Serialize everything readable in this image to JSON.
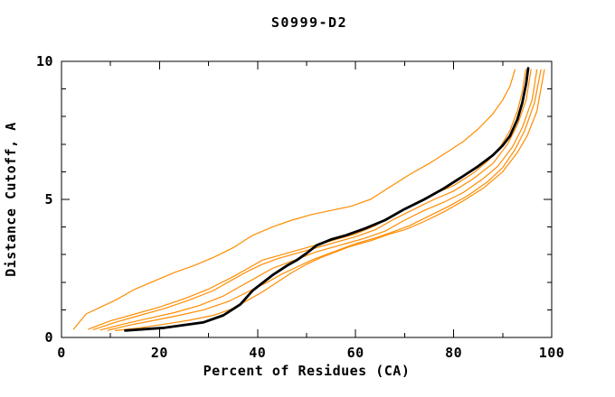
{
  "page": {
    "background": "#ffffff"
  },
  "chart_data": {
    "type": "line",
    "title": "S0999-D2",
    "xlabel": "Percent of Residues (CA)",
    "ylabel": "Distance Cutoff, A",
    "xlim": [
      0,
      100
    ],
    "ylim": [
      0,
      10
    ],
    "x_major_ticks": [
      0,
      20,
      40,
      60,
      80,
      100
    ],
    "x_minor_ticks": [
      10,
      30,
      50,
      70,
      90
    ],
    "y_major_ticks": [
      0,
      5,
      10
    ],
    "y_minor_ticks": [
      1,
      2,
      3,
      4,
      6,
      7,
      8,
      9
    ],
    "x_tick_labels": [
      "0",
      "20",
      "40",
      "60",
      "80",
      "100"
    ],
    "y_tick_labels": [
      "0",
      "5",
      "10"
    ],
    "grid": false,
    "legend": "none",
    "axis_color": "#000000",
    "accent_color": "#ff8c00",
    "series": [
      {
        "name": "model-orange-1",
        "color": "#ff8c00",
        "width": 1.2,
        "points": [
          [
            2.5,
            0.3
          ],
          [
            5,
            0.85
          ],
          [
            8,
            1.1
          ],
          [
            11,
            1.35
          ],
          [
            15,
            1.75
          ],
          [
            19,
            2.05
          ],
          [
            23,
            2.35
          ],
          [
            27,
            2.6
          ],
          [
            31,
            2.9
          ],
          [
            35,
            3.25
          ],
          [
            39,
            3.7
          ],
          [
            43,
            4.0
          ],
          [
            47,
            4.25
          ],
          [
            51,
            4.45
          ],
          [
            55,
            4.6
          ],
          [
            59,
            4.75
          ],
          [
            63,
            5.0
          ],
          [
            67,
            5.45
          ],
          [
            71,
            5.9
          ],
          [
            75,
            6.3
          ],
          [
            79,
            6.75
          ],
          [
            82,
            7.1
          ],
          [
            85,
            7.55
          ],
          [
            88,
            8.1
          ],
          [
            90,
            8.6
          ],
          [
            91.5,
            9.1
          ],
          [
            92.5,
            9.7
          ]
        ]
      },
      {
        "name": "model-orange-2",
        "color": "#ff8c00",
        "width": 1.2,
        "points": [
          [
            5.5,
            0.3
          ],
          [
            10,
            0.6
          ],
          [
            15,
            0.85
          ],
          [
            20,
            1.1
          ],
          [
            25,
            1.4
          ],
          [
            30,
            1.75
          ],
          [
            35,
            2.2
          ],
          [
            38,
            2.5
          ],
          [
            41,
            2.8
          ],
          [
            44,
            2.95
          ],
          [
            47,
            3.1
          ],
          [
            50,
            3.25
          ],
          [
            53,
            3.4
          ],
          [
            56,
            3.55
          ],
          [
            60,
            3.75
          ],
          [
            64,
            4.05
          ],
          [
            68,
            4.45
          ],
          [
            72,
            4.85
          ],
          [
            76,
            5.2
          ],
          [
            80,
            5.5
          ],
          [
            84,
            5.95
          ],
          [
            87,
            6.4
          ],
          [
            89.5,
            6.9
          ],
          [
            91.5,
            7.5
          ],
          [
            93,
            8.2
          ],
          [
            94,
            8.9
          ],
          [
            94.7,
            9.7
          ]
        ]
      },
      {
        "name": "model-orange-3",
        "color": "#ff8c00",
        "width": 1.2,
        "points": [
          [
            6.5,
            0.28
          ],
          [
            11,
            0.55
          ],
          [
            16,
            0.8
          ],
          [
            21,
            1.05
          ],
          [
            26,
            1.35
          ],
          [
            31,
            1.7
          ],
          [
            35,
            2.1
          ],
          [
            38,
            2.4
          ],
          [
            41,
            2.65
          ],
          [
            44,
            2.85
          ],
          [
            47,
            3.0
          ],
          [
            50,
            3.15
          ],
          [
            53,
            3.3
          ],
          [
            56,
            3.45
          ],
          [
            60,
            3.65
          ],
          [
            64,
            3.9
          ],
          [
            68,
            4.3
          ],
          [
            72,
            4.65
          ],
          [
            76,
            5.0
          ],
          [
            80,
            5.3
          ],
          [
            84,
            5.75
          ],
          [
            88,
            6.3
          ],
          [
            91,
            7.0
          ],
          [
            93,
            7.7
          ],
          [
            94.8,
            8.6
          ],
          [
            95.8,
            9.7
          ]
        ]
      },
      {
        "name": "model-orange-4",
        "color": "#ff8c00",
        "width": 1.2,
        "points": [
          [
            8,
            0.27
          ],
          [
            13,
            0.5
          ],
          [
            18,
            0.7
          ],
          [
            23,
            0.9
          ],
          [
            28,
            1.15
          ],
          [
            33,
            1.5
          ],
          [
            37,
            1.9
          ],
          [
            40,
            2.2
          ],
          [
            43,
            2.5
          ],
          [
            46,
            2.7
          ],
          [
            49,
            2.9
          ],
          [
            52,
            3.1
          ],
          [
            55,
            3.25
          ],
          [
            58,
            3.4
          ],
          [
            62,
            3.6
          ],
          [
            66,
            3.85
          ],
          [
            70,
            4.25
          ],
          [
            74,
            4.6
          ],
          [
            78,
            4.9
          ],
          [
            82,
            5.25
          ],
          [
            86,
            5.75
          ],
          [
            89,
            6.2
          ],
          [
            92,
            6.9
          ],
          [
            94,
            7.6
          ],
          [
            96,
            8.6
          ],
          [
            97,
            9.7
          ]
        ]
      },
      {
        "name": "model-orange-5",
        "color": "#ff8c00",
        "width": 1.2,
        "points": [
          [
            9.5,
            0.26
          ],
          [
            14,
            0.45
          ],
          [
            19,
            0.62
          ],
          [
            24,
            0.8
          ],
          [
            29,
            1.0
          ],
          [
            34,
            1.3
          ],
          [
            38,
            1.65
          ],
          [
            42,
            2.0
          ],
          [
            45,
            2.3
          ],
          [
            48,
            2.55
          ],
          [
            51,
            2.8
          ],
          [
            54,
            3.0
          ],
          [
            57,
            3.2
          ],
          [
            60,
            3.4
          ],
          [
            64,
            3.6
          ],
          [
            68,
            3.85
          ],
          [
            71,
            4.05
          ],
          [
            75,
            4.4
          ],
          [
            79,
            4.75
          ],
          [
            83,
            5.15
          ],
          [
            87,
            5.65
          ],
          [
            90,
            6.15
          ],
          [
            92.5,
            6.8
          ],
          [
            94.5,
            7.5
          ],
          [
            96.5,
            8.5
          ],
          [
            97.8,
            9.7
          ]
        ]
      },
      {
        "name": "model-orange-6",
        "color": "#ff8c00",
        "width": 1.2,
        "points": [
          [
            11,
            0.25
          ],
          [
            16,
            0.35
          ],
          [
            21,
            0.48
          ],
          [
            26,
            0.62
          ],
          [
            31,
            0.8
          ],
          [
            35,
            1.05
          ],
          [
            38,
            1.35
          ],
          [
            41,
            1.65
          ],
          [
            44,
            2.0
          ],
          [
            47,
            2.35
          ],
          [
            50,
            2.65
          ],
          [
            53,
            2.9
          ],
          [
            56,
            3.1
          ],
          [
            59,
            3.3
          ],
          [
            63,
            3.5
          ],
          [
            67,
            3.75
          ],
          [
            70,
            3.9
          ],
          [
            74,
            4.2
          ],
          [
            78,
            4.55
          ],
          [
            82,
            4.95
          ],
          [
            86,
            5.4
          ],
          [
            90,
            6.0
          ],
          [
            93,
            6.7
          ],
          [
            95,
            7.3
          ],
          [
            97,
            8.2
          ],
          [
            98.5,
            9.7
          ]
        ]
      },
      {
        "name": "model-black-main",
        "color": "#000000",
        "width": 2.8,
        "points": [
          [
            13,
            0.25
          ],
          [
            17,
            0.3
          ],
          [
            21,
            0.35
          ],
          [
            25,
            0.45
          ],
          [
            29,
            0.55
          ],
          [
            33,
            0.8
          ],
          [
            36.5,
            1.2
          ],
          [
            39,
            1.7
          ],
          [
            43,
            2.25
          ],
          [
            46,
            2.6
          ],
          [
            48,
            2.8
          ],
          [
            50,
            3.05
          ],
          [
            52,
            3.33
          ],
          [
            55,
            3.55
          ],
          [
            58,
            3.7
          ],
          [
            62,
            3.95
          ],
          [
            66,
            4.25
          ],
          [
            70,
            4.65
          ],
          [
            74,
            5.0
          ],
          [
            78,
            5.4
          ],
          [
            82,
            5.85
          ],
          [
            85,
            6.2
          ],
          [
            88,
            6.6
          ],
          [
            90,
            6.95
          ],
          [
            91.5,
            7.3
          ],
          [
            93,
            7.9
          ],
          [
            94,
            8.5
          ],
          [
            94.8,
            9.2
          ],
          [
            95.2,
            9.75
          ]
        ]
      }
    ]
  }
}
